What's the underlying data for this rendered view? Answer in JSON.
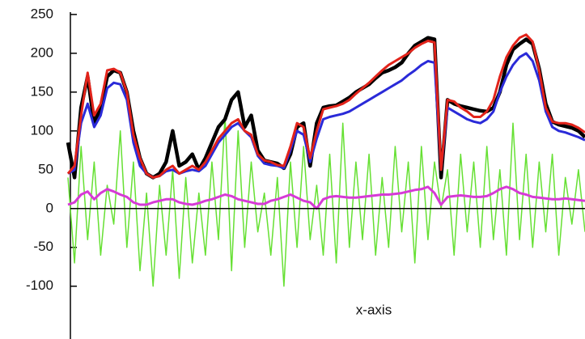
{
  "chart_data": {
    "type": "line",
    "x_label": "x-axis",
    "x": [
      0,
      1,
      2,
      3,
      4,
      5,
      6,
      7,
      8,
      9,
      10,
      11,
      12,
      13,
      14,
      15,
      16,
      17,
      18,
      19,
      20,
      21,
      22,
      23,
      24,
      25,
      26,
      27,
      28,
      29,
      30,
      31,
      32,
      33,
      34,
      35,
      36,
      37,
      38,
      39,
      40,
      41,
      42,
      43,
      44,
      45,
      46,
      47,
      48,
      49,
      50,
      51,
      52,
      53,
      54,
      55,
      56,
      57,
      58,
      59,
      60,
      61,
      62,
      63,
      64,
      65,
      66,
      67,
      68,
      69,
      70,
      71,
      72,
      73,
      74,
      75,
      76,
      77,
      78,
      79
    ],
    "xlim": [
      0,
      79
    ],
    "ylim": [
      -168,
      253
    ],
    "yticks": [
      250,
      200,
      150,
      100,
      50,
      0,
      -50,
      -100
    ],
    "series": [
      {
        "color": "#66e033",
        "width": 1.5,
        "values": [
          40,
          -70,
          80,
          -40,
          60,
          -60,
          30,
          -20,
          100,
          -50,
          60,
          -80,
          20,
          -100,
          30,
          -60,
          50,
          -90,
          40,
          -70,
          20,
          -60,
          60,
          -40,
          120,
          -80,
          100,
          -50,
          60,
          -30,
          20,
          -60,
          40,
          -100,
          60,
          -50,
          80,
          -40,
          30,
          -60,
          70,
          -70,
          110,
          -50,
          60,
          -40,
          70,
          -60,
          40,
          -50,
          80,
          -30,
          60,
          -70,
          80,
          -40,
          60,
          0,
          50,
          -60,
          70,
          -30,
          60,
          -50,
          80,
          -40,
          50,
          -60,
          110,
          -40,
          70,
          -50,
          60,
          -30,
          70,
          -60,
          40,
          -20,
          50,
          -30
        ]
      },
      {
        "color": "#d63ad6",
        "width": 3,
        "values": [
          5,
          8,
          18,
          22,
          12,
          20,
          25,
          22,
          18,
          15,
          8,
          5,
          5,
          8,
          10,
          12,
          12,
          8,
          6,
          5,
          7,
          10,
          12,
          15,
          18,
          16,
          12,
          10,
          8,
          6,
          6,
          10,
          12,
          15,
          18,
          14,
          10,
          8,
          0,
          12,
          15,
          16,
          15,
          14,
          14,
          15,
          16,
          17,
          18,
          18,
          19,
          20,
          22,
          24,
          25,
          28,
          20,
          5,
          15,
          16,
          17,
          16,
          15,
          15,
          16,
          20,
          25,
          28,
          25,
          20,
          18,
          15,
          14,
          13,
          12,
          12,
          13,
          12,
          11,
          10
        ]
      },
      {
        "color": "#000000",
        "width": 4.5,
        "values": [
          85,
          40,
          130,
          170,
          110,
          130,
          170,
          178,
          175,
          150,
          100,
          65,
          45,
          40,
          45,
          60,
          100,
          55,
          60,
          70,
          50,
          65,
          85,
          105,
          115,
          140,
          150,
          105,
          120,
          75,
          62,
          60,
          58,
          52,
          70,
          105,
          110,
          55,
          110,
          130,
          132,
          133,
          138,
          143,
          150,
          155,
          160,
          168,
          175,
          178,
          182,
          188,
          200,
          210,
          215,
          220,
          218,
          40,
          140,
          135,
          132,
          130,
          128,
          126,
          125,
          130,
          150,
          185,
          205,
          212,
          218,
          212,
          180,
          135,
          112,
          108,
          106,
          104,
          100,
          92
        ]
      },
      {
        "color": "#2a2ad8",
        "width": 3,
        "values": [
          45,
          50,
          110,
          135,
          105,
          120,
          155,
          162,
          160,
          140,
          85,
          55,
          45,
          40,
          42,
          48,
          50,
          45,
          48,
          50,
          48,
          55,
          70,
          85,
          95,
          105,
          110,
          100,
          92,
          68,
          58,
          56,
          55,
          52,
          75,
          100,
          95,
          60,
          90,
          115,
          118,
          120,
          122,
          125,
          130,
          135,
          140,
          145,
          150,
          155,
          160,
          165,
          172,
          178,
          185,
          190,
          188,
          50,
          130,
          125,
          120,
          115,
          112,
          110,
          115,
          125,
          150,
          170,
          185,
          195,
          200,
          190,
          165,
          125,
          105,
          100,
          98,
          95,
          92,
          88
        ]
      },
      {
        "color": "#e2231a",
        "width": 3,
        "values": [
          45,
          55,
          120,
          175,
          120,
          135,
          178,
          180,
          175,
          150,
          95,
          65,
          45,
          40,
          42,
          50,
          55,
          45,
          50,
          55,
          50,
          60,
          75,
          90,
          100,
          110,
          115,
          100,
          95,
          70,
          62,
          60,
          56,
          55,
          80,
          110,
          105,
          65,
          100,
          128,
          130,
          132,
          135,
          140,
          148,
          155,
          162,
          170,
          178,
          185,
          190,
          195,
          200,
          207,
          212,
          216,
          214,
          50,
          140,
          138,
          130,
          125,
          118,
          118,
          125,
          140,
          170,
          195,
          210,
          220,
          224,
          215,
          178,
          130,
          112,
          110,
          110,
          108,
          104,
          98
        ]
      }
    ]
  }
}
